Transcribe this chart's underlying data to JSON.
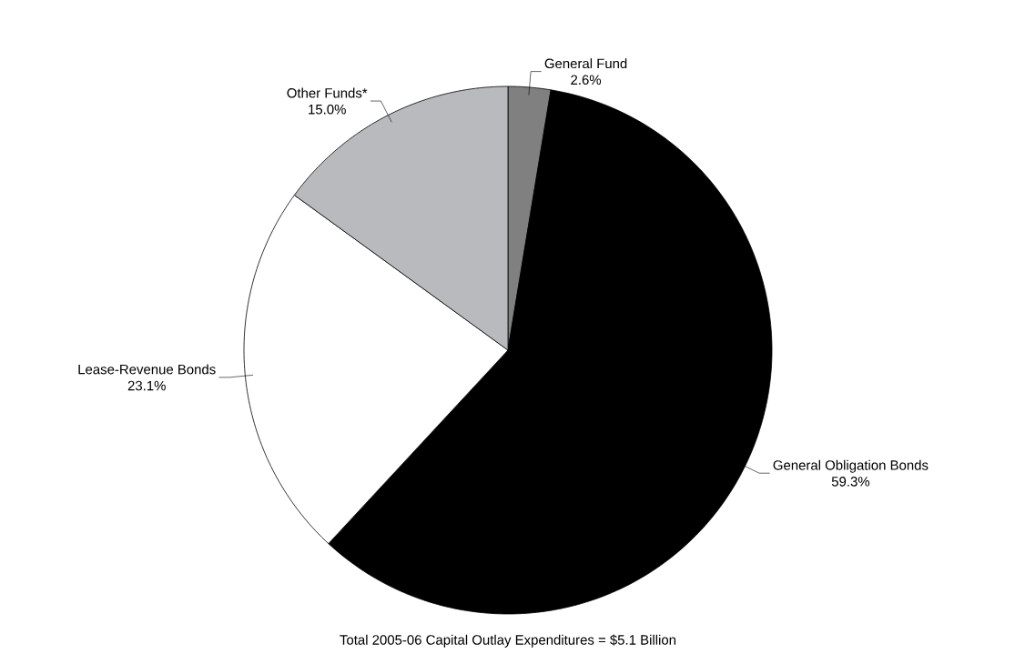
{
  "chart_data": {
    "type": "pie",
    "categories": [
      "General Fund",
      "General Obligation Bonds",
      "Lease-Revenue Bonds",
      "Other Funds*"
    ],
    "values": [
      2.6,
      59.3,
      23.1,
      15.0
    ],
    "value_labels": [
      "2.6%",
      "59.3%",
      "23.1%",
      "15.0%"
    ],
    "colors": [
      "#808080",
      "#000000",
      "#ffffff",
      "#b8babd"
    ],
    "annotations": [
      "Total 2005-06 Capital Outlay Expenditures = $5.1 Billion"
    ]
  }
}
